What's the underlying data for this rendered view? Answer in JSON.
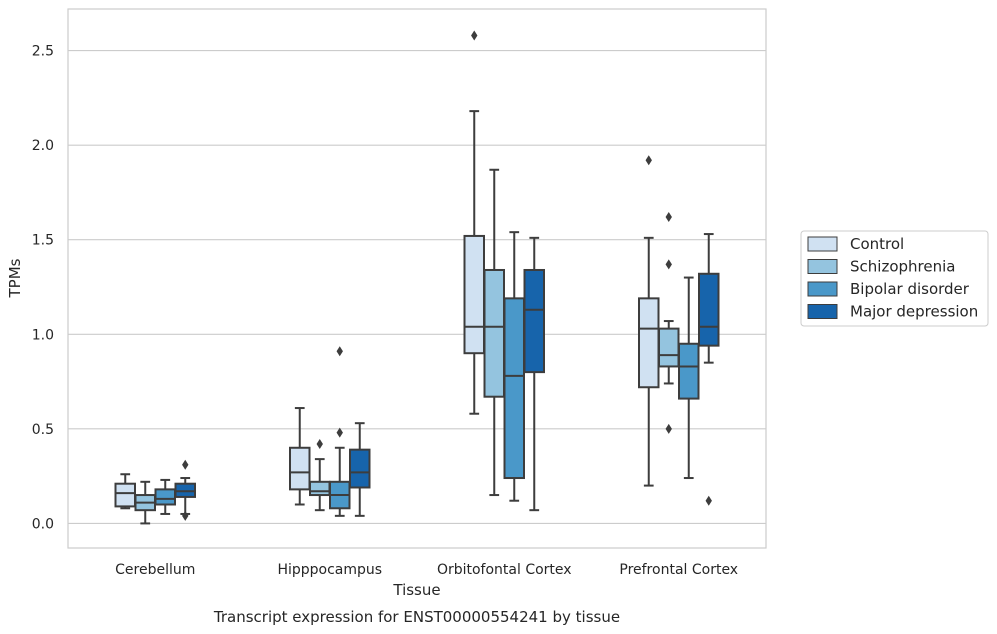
{
  "chart_data": {
    "type": "box",
    "caption": "Transcript expression for ENST00000554241 by tissue",
    "xlabel": "Tissue",
    "ylabel": "TPMs",
    "ylim": [
      -0.13,
      2.72
    ],
    "yticks": [
      0.0,
      0.5,
      1.0,
      1.5,
      2.0,
      2.5
    ],
    "ytick_labels": [
      "0.0",
      "0.5",
      "1.0",
      "1.5",
      "2.0",
      "2.5"
    ],
    "grid": "horizontal",
    "legend_position": "right",
    "categories": [
      "Cerebellum",
      "Hipppocampus",
      "Orbitofontal Cortex",
      "Prefrontal Cortex"
    ],
    "series": [
      {
        "name": "Control",
        "color": "#d0e1f2",
        "boxes": [
          {
            "whislo": 0.08,
            "q1": 0.09,
            "med": 0.16,
            "q3": 0.21,
            "whishi": 0.26,
            "fliers": []
          },
          {
            "whislo": 0.1,
            "q1": 0.18,
            "med": 0.27,
            "q3": 0.4,
            "whishi": 0.61,
            "fliers": []
          },
          {
            "whislo": 0.58,
            "q1": 0.9,
            "med": 1.04,
            "q3": 1.52,
            "whishi": 2.18,
            "fliers": [
              2.58
            ]
          },
          {
            "whislo": 0.2,
            "q1": 0.72,
            "med": 1.03,
            "q3": 1.19,
            "whishi": 1.51,
            "fliers": [
              1.92
            ]
          }
        ]
      },
      {
        "name": "Schizophrenia",
        "color": "#94c4df",
        "boxes": [
          {
            "whislo": 0.0,
            "q1": 0.07,
            "med": 0.11,
            "q3": 0.15,
            "whishi": 0.22,
            "fliers": []
          },
          {
            "whislo": 0.07,
            "q1": 0.15,
            "med": 0.17,
            "q3": 0.22,
            "whishi": 0.34,
            "fliers": [
              0.42
            ]
          },
          {
            "whislo": 0.15,
            "q1": 0.67,
            "med": 1.04,
            "q3": 1.34,
            "whishi": 1.87,
            "fliers": []
          },
          {
            "whislo": 0.74,
            "q1": 0.83,
            "med": 0.89,
            "q3": 1.03,
            "whishi": 1.07,
            "fliers": [
              1.62,
              1.37,
              0.5
            ]
          }
        ]
      },
      {
        "name": "Bipolar disorder",
        "color": "#4a98c9",
        "boxes": [
          {
            "whislo": 0.05,
            "q1": 0.1,
            "med": 0.13,
            "q3": 0.18,
            "whishi": 0.23,
            "fliers": []
          },
          {
            "whislo": 0.04,
            "q1": 0.08,
            "med": 0.15,
            "q3": 0.22,
            "whishi": 0.4,
            "fliers": [
              0.91,
              0.48
            ]
          },
          {
            "whislo": 0.12,
            "q1": 0.24,
            "med": 0.78,
            "q3": 1.19,
            "whishi": 1.54,
            "fliers": []
          },
          {
            "whislo": 0.24,
            "q1": 0.66,
            "med": 0.83,
            "q3": 0.95,
            "whishi": 1.3,
            "fliers": []
          }
        ]
      },
      {
        "name": "Major depression",
        "color": "#1764ab",
        "boxes": [
          {
            "whislo": 0.05,
            "q1": 0.14,
            "med": 0.17,
            "q3": 0.21,
            "whishi": 0.24,
            "fliers": [
              0.31,
              0.04
            ]
          },
          {
            "whislo": 0.04,
            "q1": 0.19,
            "med": 0.27,
            "q3": 0.39,
            "whishi": 0.53,
            "fliers": []
          },
          {
            "whislo": 0.07,
            "q1": 0.8,
            "med": 1.13,
            "q3": 1.34,
            "whishi": 1.51,
            "fliers": []
          },
          {
            "whislo": 0.85,
            "q1": 0.94,
            "med": 1.04,
            "q3": 1.32,
            "whishi": 1.53,
            "fliers": [
              0.12
            ]
          }
        ]
      }
    ],
    "colors": {
      "grid": "#cccccc",
      "frame": "#cccccc",
      "line": "#3d3d3d",
      "text": "#262626",
      "background": "#ffffff"
    }
  }
}
